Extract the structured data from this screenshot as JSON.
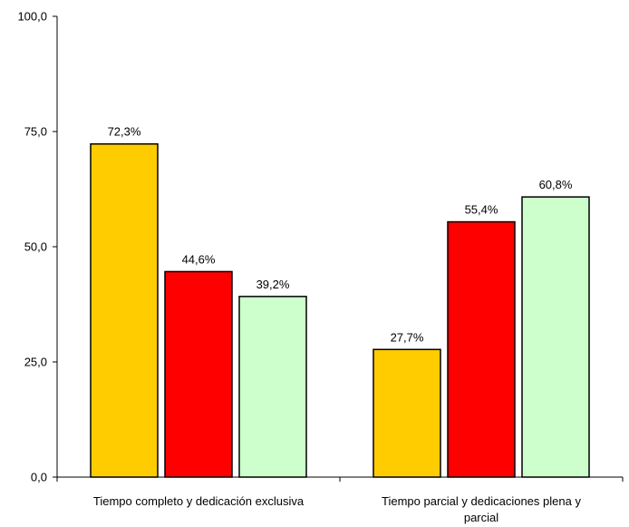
{
  "chart_data": {
    "type": "bar",
    "title": "",
    "xlabel": "",
    "ylabel": "",
    "ylim": [
      0,
      100
    ],
    "yticks": [
      "0,0",
      "25,0",
      "50,0",
      "75,0",
      "100,0"
    ],
    "ytick_values": [
      0,
      25,
      50,
      75,
      100
    ],
    "grid": false,
    "legend": "none",
    "categories": [
      [
        "Tiempo completo y dedicación exclusiva"
      ],
      [
        "Tiempo parcial y dedicaciones plena y",
        "parcial"
      ]
    ],
    "series": [
      {
        "color": "#FFCC00",
        "values": [
          72.3,
          27.7
        ],
        "labels": [
          "72,3%",
          "27,7%"
        ]
      },
      {
        "color": "#FF0000",
        "values": [
          44.6,
          55.4
        ],
        "labels": [
          "44,6%",
          "55,4%"
        ]
      },
      {
        "color": "#CCFFCC",
        "values": [
          39.2,
          60.8
        ],
        "labels": [
          "39,2%",
          "60,8%"
        ]
      }
    ]
  }
}
